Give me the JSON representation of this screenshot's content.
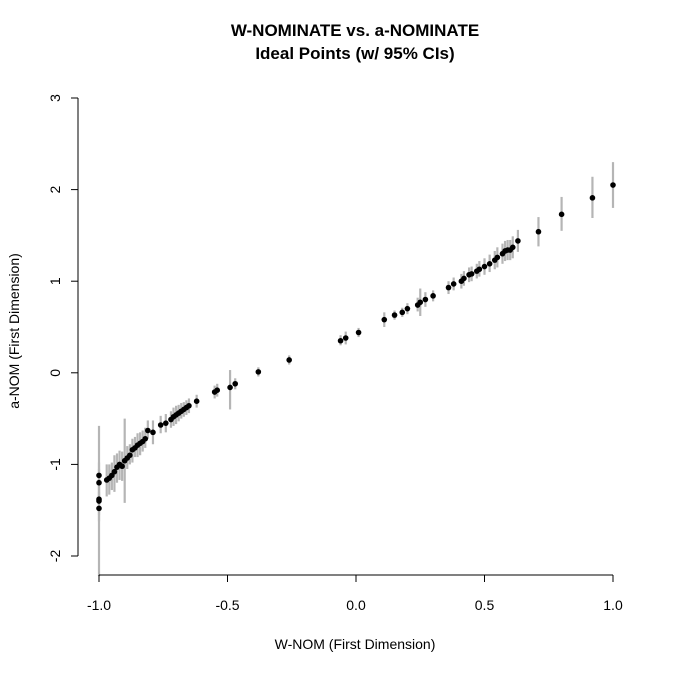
{
  "chart_data": {
    "type": "scatter",
    "title": "W-NOMINATE vs. a-NOMINATE",
    "subtitle": "Ideal Points (w/ 95% CIs)",
    "xlabel": "W-NOM (First Dimension)",
    "ylabel": "a-NOM (First Dimension)",
    "xlim": [
      -1.0,
      1.0
    ],
    "ylim": [
      -2,
      3
    ],
    "xticks": [
      "-1.0",
      "-0.5",
      "0.0",
      "0.5",
      "1.0"
    ],
    "yticks": [
      "-2",
      "-1",
      "0",
      "1",
      "2",
      "3"
    ],
    "grid": false,
    "legend": "none",
    "colors": {
      "point": "#000000",
      "interval": "#b5b5b5"
    },
    "points": [
      {
        "x": -1.0,
        "y": -1.4,
        "lo": -2.22,
        "hi": -0.58
      },
      {
        "x": -1.0,
        "y": -1.48,
        "lo": -1.62,
        "hi": -1.3
      },
      {
        "x": -1.0,
        "y": -1.38,
        "lo": -1.55,
        "hi": -1.25
      },
      {
        "x": -1.0,
        "y": -1.2,
        "lo": -1.35,
        "hi": -1.05
      },
      {
        "x": -1.0,
        "y": -1.12,
        "lo": -1.25,
        "hi": -0.98
      },
      {
        "x": -0.97,
        "y": -1.17,
        "lo": -1.35,
        "hi": -1.0
      },
      {
        "x": -0.96,
        "y": -1.15,
        "lo": -1.33,
        "hi": -1.0
      },
      {
        "x": -0.95,
        "y": -1.12,
        "lo": -1.28,
        "hi": -0.98
      },
      {
        "x": -0.94,
        "y": -1.08,
        "lo": -1.3,
        "hi": -0.9
      },
      {
        "x": -0.93,
        "y": -1.03,
        "lo": -1.2,
        "hi": -0.88
      },
      {
        "x": -0.92,
        "y": -1.0,
        "lo": -1.17,
        "hi": -0.85
      },
      {
        "x": -0.91,
        "y": -1.02,
        "lo": -1.18,
        "hi": -0.86
      },
      {
        "x": -0.9,
        "y": -0.96,
        "lo": -1.42,
        "hi": -0.5
      },
      {
        "x": -0.89,
        "y": -0.93,
        "lo": -1.05,
        "hi": -0.8
      },
      {
        "x": -0.88,
        "y": -0.9,
        "lo": -1.0,
        "hi": -0.78
      },
      {
        "x": -0.87,
        "y": -0.84,
        "lo": -0.98,
        "hi": -0.72
      },
      {
        "x": -0.86,
        "y": -0.82,
        "lo": -0.92,
        "hi": -0.7
      },
      {
        "x": -0.85,
        "y": -0.79,
        "lo": -0.92,
        "hi": -0.66
      },
      {
        "x": -0.84,
        "y": -0.77,
        "lo": -0.9,
        "hi": -0.65
      },
      {
        "x": -0.83,
        "y": -0.75,
        "lo": -0.86,
        "hi": -0.63
      },
      {
        "x": -0.82,
        "y": -0.72,
        "lo": -0.82,
        "hi": -0.6
      },
      {
        "x": -0.81,
        "y": -0.63,
        "lo": -0.72,
        "hi": -0.52
      },
      {
        "x": -0.79,
        "y": -0.65,
        "lo": -0.78,
        "hi": -0.52
      },
      {
        "x": -0.76,
        "y": -0.57,
        "lo": -0.66,
        "hi": -0.47
      },
      {
        "x": -0.74,
        "y": -0.55,
        "lo": -0.65,
        "hi": -0.45
      },
      {
        "x": -0.72,
        "y": -0.51,
        "lo": -0.6,
        "hi": -0.42
      },
      {
        "x": -0.71,
        "y": -0.48,
        "lo": -0.58,
        "hi": -0.38
      },
      {
        "x": -0.7,
        "y": -0.46,
        "lo": -0.56,
        "hi": -0.36
      },
      {
        "x": -0.69,
        "y": -0.44,
        "lo": -0.53,
        "hi": -0.35
      },
      {
        "x": -0.68,
        "y": -0.42,
        "lo": -0.5,
        "hi": -0.33
      },
      {
        "x": -0.67,
        "y": -0.4,
        "lo": -0.48,
        "hi": -0.32
      },
      {
        "x": -0.66,
        "y": -0.38,
        "lo": -0.46,
        "hi": -0.3
      },
      {
        "x": -0.65,
        "y": -0.36,
        "lo": -0.44,
        "hi": -0.28
      },
      {
        "x": -0.62,
        "y": -0.31,
        "lo": -0.38,
        "hi": -0.24
      },
      {
        "x": -0.55,
        "y": -0.21,
        "lo": -0.28,
        "hi": -0.14
      },
      {
        "x": -0.54,
        "y": -0.19,
        "lo": -0.26,
        "hi": -0.12
      },
      {
        "x": -0.49,
        "y": -0.16,
        "lo": -0.4,
        "hi": 0.03
      },
      {
        "x": -0.47,
        "y": -0.12,
        "lo": -0.18,
        "hi": -0.06
      },
      {
        "x": -0.38,
        "y": 0.01,
        "lo": -0.04,
        "hi": 0.06
      },
      {
        "x": -0.26,
        "y": 0.14,
        "lo": 0.09,
        "hi": 0.19
      },
      {
        "x": -0.06,
        "y": 0.35,
        "lo": 0.3,
        "hi": 0.41
      },
      {
        "x": -0.04,
        "y": 0.38,
        "lo": 0.31,
        "hi": 0.45
      },
      {
        "x": 0.01,
        "y": 0.44,
        "lo": 0.39,
        "hi": 0.49
      },
      {
        "x": 0.11,
        "y": 0.58,
        "lo": 0.5,
        "hi": 0.66
      },
      {
        "x": 0.15,
        "y": 0.63,
        "lo": 0.58,
        "hi": 0.68
      },
      {
        "x": 0.18,
        "y": 0.66,
        "lo": 0.61,
        "hi": 0.71
      },
      {
        "x": 0.2,
        "y": 0.7,
        "lo": 0.64,
        "hi": 0.76
      },
      {
        "x": 0.24,
        "y": 0.74,
        "lo": 0.67,
        "hi": 0.82
      },
      {
        "x": 0.25,
        "y": 0.77,
        "lo": 0.62,
        "hi": 0.92
      },
      {
        "x": 0.27,
        "y": 0.8,
        "lo": 0.72,
        "hi": 0.88
      },
      {
        "x": 0.3,
        "y": 0.84,
        "lo": 0.78,
        "hi": 0.9
      },
      {
        "x": 0.36,
        "y": 0.93,
        "lo": 0.86,
        "hi": 1.0
      },
      {
        "x": 0.38,
        "y": 0.97,
        "lo": 0.9,
        "hi": 1.04
      },
      {
        "x": 0.41,
        "y": 1.0,
        "lo": 0.92,
        "hi": 1.08
      },
      {
        "x": 0.42,
        "y": 1.03,
        "lo": 0.95,
        "hi": 1.11
      },
      {
        "x": 0.44,
        "y": 1.07,
        "lo": 0.99,
        "hi": 1.15
      },
      {
        "x": 0.45,
        "y": 1.08,
        "lo": 1.0,
        "hi": 1.16
      },
      {
        "x": 0.47,
        "y": 1.11,
        "lo": 1.03,
        "hi": 1.19
      },
      {
        "x": 0.48,
        "y": 1.13,
        "lo": 1.05,
        "hi": 1.22
      },
      {
        "x": 0.5,
        "y": 1.16,
        "lo": 1.07,
        "hi": 1.25
      },
      {
        "x": 0.52,
        "y": 1.19,
        "lo": 1.1,
        "hi": 1.29
      },
      {
        "x": 0.54,
        "y": 1.23,
        "lo": 1.13,
        "hi": 1.33
      },
      {
        "x": 0.55,
        "y": 1.26,
        "lo": 1.15,
        "hi": 1.37
      },
      {
        "x": 0.57,
        "y": 1.3,
        "lo": 1.19,
        "hi": 1.41
      },
      {
        "x": 0.58,
        "y": 1.33,
        "lo": 1.22,
        "hi": 1.44
      },
      {
        "x": 0.59,
        "y": 1.34,
        "lo": 1.23,
        "hi": 1.45
      },
      {
        "x": 0.6,
        "y": 1.34,
        "lo": 1.23,
        "hi": 1.45
      },
      {
        "x": 0.61,
        "y": 1.37,
        "lo": 1.25,
        "hi": 1.49
      },
      {
        "x": 0.63,
        "y": 1.44,
        "lo": 1.32,
        "hi": 1.56
      },
      {
        "x": 0.71,
        "y": 1.54,
        "lo": 1.38,
        "hi": 1.7
      },
      {
        "x": 0.8,
        "y": 1.73,
        "lo": 1.55,
        "hi": 1.92
      },
      {
        "x": 0.92,
        "y": 1.91,
        "lo": 1.69,
        "hi": 2.14
      },
      {
        "x": 1.0,
        "y": 2.05,
        "lo": 1.8,
        "hi": 2.3
      }
    ]
  }
}
